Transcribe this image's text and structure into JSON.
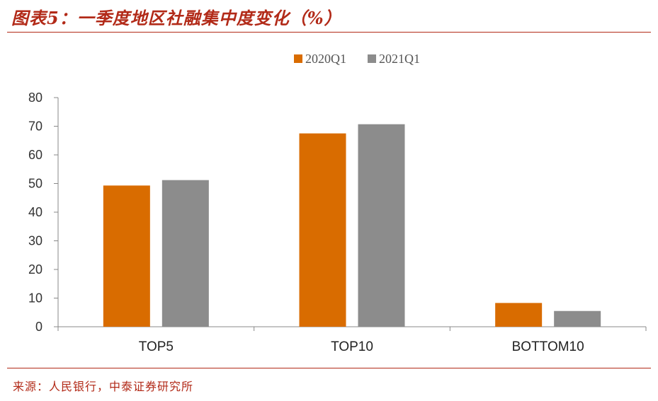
{
  "header": {
    "title": "图表5：一季度地区社融集中度变化（%）"
  },
  "footer": {
    "source": "来源：人民银行，中泰证券研究所"
  },
  "colors": {
    "series_1": "#d96c00",
    "series_2": "#8c8c8c",
    "accent": "#b22a18"
  },
  "chart_data": {
    "type": "bar",
    "title": "一季度地区社融集中度变化（%）",
    "categories": [
      "TOP5",
      "TOP10",
      "BOTTOM10"
    ],
    "series": [
      {
        "name": "2020Q1",
        "values": [
          49.3,
          67.5,
          8.3
        ]
      },
      {
        "name": "2021Q1",
        "values": [
          51.2,
          70.7,
          5.5
        ]
      }
    ],
    "yticks": [
      "0",
      "10",
      "20",
      "30",
      "40",
      "50",
      "60",
      "70",
      "80"
    ],
    "ylim": [
      0,
      80
    ],
    "xlabel": "",
    "ylabel": "",
    "grid": false,
    "legend": "top-center"
  }
}
